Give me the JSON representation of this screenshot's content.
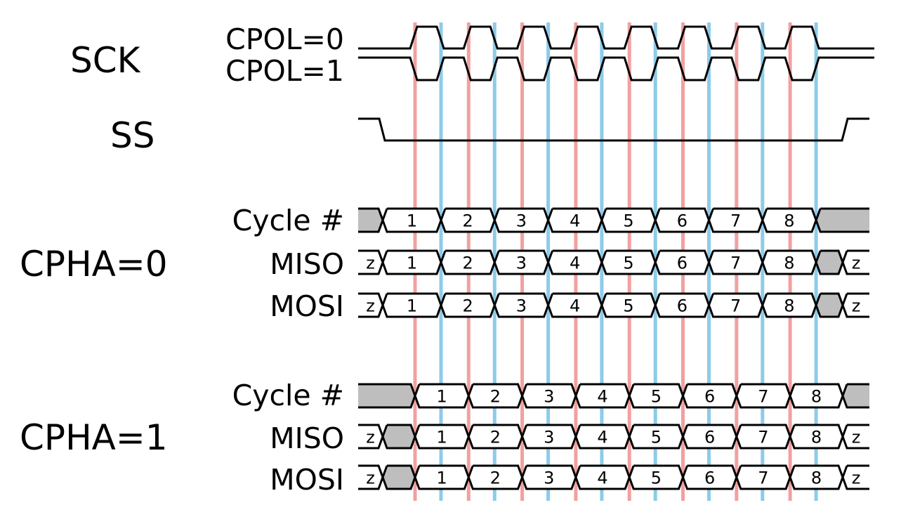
{
  "labels": {
    "sck": "SCK",
    "cpol0": "CPOL=0",
    "cpol1": "CPOL=1",
    "ss": "SS",
    "cpha0": "CPHA=0",
    "cpha1": "CPHA=1",
    "cycle": "Cycle #",
    "miso": "MISO",
    "mosi": "MOSI"
  },
  "cycles": [
    "1",
    "2",
    "3",
    "4",
    "5",
    "6",
    "7",
    "8"
  ],
  "high_z_label": "z",
  "colors": {
    "leading_edge": "#f2a0a0",
    "trailing_edge": "#8ccbea",
    "undefined_fill": "#bebebe",
    "line": "#000000"
  }
}
